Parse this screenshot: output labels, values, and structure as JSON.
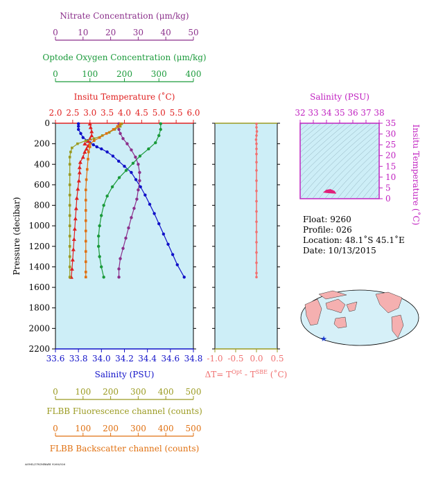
{
  "colors": {
    "nitrate": "#8b2f8b",
    "oxygen": "#1a9a3a",
    "temperature": "#e02020",
    "salinity": "#1010c8",
    "fluorescence": "#9a9a20",
    "backscatter": "#e07010",
    "delta_t": "#f07070",
    "salinity_ts": "#c020c0",
    "ts_fill": "#e0207a",
    "plot_bg": "#cdeef7",
    "black": "#000000"
  },
  "chart_data": [
    {
      "type": "line",
      "name": "profile",
      "ylabel": "Pressure (decibar)",
      "ylim": [
        0,
        2200
      ],
      "y_ticks": [
        "0",
        "200",
        "400",
        "600",
        "800",
        "1000",
        "1200",
        "1400",
        "1600",
        "1800",
        "2000",
        "2200"
      ],
      "axes": {
        "nitrate": {
          "label": "Nitrate Concentration (μm/kg)",
          "range": [
            0,
            50
          ],
          "ticks": [
            "0",
            "10",
            "20",
            "30",
            "40",
            "50"
          ]
        },
        "oxygen": {
          "label": "Optode Oxygen Concentration (μm/kg)",
          "range": [
            0,
            400
          ],
          "ticks": [
            "0",
            "100",
            "200",
            "300",
            "400"
          ]
        },
        "temperature": {
          "label": "Insitu Temperature (˚C)",
          "range": [
            2.0,
            6.0
          ],
          "ticks": [
            "2.0",
            "2.5",
            "3.0",
            "3.5",
            "4.0",
            "4.5",
            "5.0",
            "5.5",
            "6.0"
          ]
        },
        "salinity": {
          "label": "Salinity (PSU)",
          "range": [
            33.6,
            34.8
          ],
          "ticks": [
            "33.6",
            "33.8",
            "34.0",
            "34.2",
            "34.4",
            "34.6",
            "34.8"
          ]
        },
        "fluorescence": {
          "label": "FLBB Fluorescence channel (counts)",
          "range": [
            0,
            500
          ],
          "ticks": [
            "0",
            "100",
            "200",
            "300",
            "400",
            "500"
          ]
        },
        "backscatter": {
          "label": "FLBB Backscatter channel (counts)",
          "range": [
            0,
            500
          ],
          "ticks": [
            "0",
            "100",
            "200",
            "300",
            "400",
            "500"
          ]
        }
      },
      "series": [
        {
          "axis": "salinity",
          "marker": "circle",
          "points": [
            [
              33.8,
              5
            ],
            [
              33.8,
              30
            ],
            [
              33.8,
              60
            ],
            [
              33.82,
              100
            ],
            [
              33.84,
              140
            ],
            [
              33.88,
              170
            ],
            [
              33.9,
              190
            ],
            [
              33.93,
              210
            ],
            [
              33.96,
              230
            ],
            [
              34.0,
              250
            ],
            [
              34.05,
              280
            ],
            [
              34.1,
              320
            ],
            [
              34.15,
              370
            ],
            [
              34.2,
              420
            ],
            [
              34.26,
              480
            ],
            [
              34.3,
              550
            ],
            [
              34.34,
              620
            ],
            [
              34.38,
              700
            ],
            [
              34.42,
              790
            ],
            [
              34.46,
              880
            ],
            [
              34.5,
              980
            ],
            [
              34.54,
              1080
            ],
            [
              34.58,
              1180
            ],
            [
              34.62,
              1280
            ],
            [
              34.66,
              1380
            ],
            [
              34.72,
              1500
            ]
          ]
        },
        {
          "axis": "temperature",
          "marker": "triangle",
          "points": [
            [
              3.0,
              5
            ],
            [
              3.02,
              40
            ],
            [
              3.05,
              80
            ],
            [
              3.05,
              120
            ],
            [
              3.0,
              150
            ],
            [
              2.95,
              175
            ],
            [
              2.85,
              200
            ],
            [
              2.95,
              220
            ],
            [
              2.9,
              250
            ],
            [
              2.85,
              280
            ],
            [
              2.8,
              330
            ],
            [
              2.72,
              380
            ],
            [
              2.7,
              430
            ],
            [
              2.7,
              480
            ],
            [
              2.68,
              560
            ],
            [
              2.65,
              640
            ],
            [
              2.62,
              730
            ],
            [
              2.6,
              830
            ],
            [
              2.58,
              930
            ],
            [
              2.56,
              1030
            ],
            [
              2.54,
              1130
            ],
            [
              2.52,
              1230
            ],
            [
              2.5,
              1330
            ],
            [
              2.48,
              1420
            ],
            [
              2.46,
              1500
            ]
          ]
        },
        {
          "axis": "oxygen",
          "marker": "circle",
          "points": [
            [
              305,
              5
            ],
            [
              305,
              60
            ],
            [
              300,
              120
            ],
            [
              290,
              190
            ],
            [
              270,
              250
            ],
            [
              245,
              320
            ],
            [
              225,
              390
            ],
            [
              205,
              460
            ],
            [
              185,
              530
            ],
            [
              165,
              620
            ],
            [
              150,
              710
            ],
            [
              140,
              800
            ],
            [
              133,
              900
            ],
            [
              128,
              1000
            ],
            [
              125,
              1100
            ],
            [
              125,
              1200
            ],
            [
              128,
              1300
            ],
            [
              133,
              1400
            ],
            [
              140,
              1500
            ]
          ]
        },
        {
          "axis": "nitrate",
          "marker": "circle",
          "points": [
            [
              23,
              5
            ],
            [
              23,
              60
            ],
            [
              23.5,
              100
            ],
            [
              24.5,
              150
            ],
            [
              26,
              200
            ],
            [
              27.5,
              260
            ],
            [
              29,
              330
            ],
            [
              30,
              400
            ],
            [
              30.5,
              480
            ],
            [
              30.5,
              560
            ],
            [
              30,
              650
            ],
            [
              29.5,
              740
            ],
            [
              28.5,
              830
            ],
            [
              27.5,
              920
            ],
            [
              26.5,
              1020
            ],
            [
              25.5,
              1120
            ],
            [
              24.5,
              1220
            ],
            [
              23.5,
              1320
            ],
            [
              23,
              1420
            ],
            [
              23,
              1500
            ]
          ]
        },
        {
          "axis": "fluorescence",
          "marker": "square",
          "points": [
            [
              240,
              5
            ],
            [
              235,
              30
            ],
            [
              215,
              60
            ],
            [
              195,
              90
            ],
            [
              170,
              120
            ],
            [
              140,
              150
            ],
            [
              110,
              170
            ],
            [
              80,
              200
            ],
            [
              60,
              240
            ],
            [
              55,
              280
            ],
            [
              52,
              330
            ],
            [
              52,
              400
            ],
            [
              52,
              500
            ],
            [
              52,
              600
            ],
            [
              52,
              700
            ],
            [
              52,
              800
            ],
            [
              52,
              900
            ],
            [
              52,
              1000
            ],
            [
              52,
              1100
            ],
            [
              52,
              1200
            ],
            [
              52,
              1300
            ],
            [
              52,
              1400
            ],
            [
              52,
              1500
            ]
          ]
        },
        {
          "axis": "backscatter",
          "marker": "square",
          "points": [
            [
              235,
              5
            ],
            [
              225,
              30
            ],
            [
              210,
              60
            ],
            [
              185,
              100
            ],
            [
              160,
              140
            ],
            [
              140,
              170
            ],
            [
              125,
              200
            ],
            [
              125,
              230
            ],
            [
              120,
              280
            ],
            [
              118,
              350
            ],
            [
              115,
              450
            ],
            [
              112,
              550
            ],
            [
              110,
              650
            ],
            [
              110,
              750
            ],
            [
              110,
              850
            ],
            [
              110,
              950
            ],
            [
              110,
              1050
            ],
            [
              110,
              1150
            ],
            [
              110,
              1250
            ],
            [
              110,
              1350
            ],
            [
              110,
              1450
            ],
            [
              110,
              1500
            ]
          ]
        }
      ]
    },
    {
      "type": "line",
      "name": "delta-t",
      "xlabel": "ΔT= T",
      "xlabel_sup1": "Opt",
      "xlabel_mid": " - T",
      "xlabel_sup2": "SBE",
      "xlabel_tail": " (˚C)",
      "xlim": [
        -1.0,
        0.5
      ],
      "ylim": [
        0,
        2200
      ],
      "x_ticks": [
        "-1.0",
        "-0.5",
        "0.0",
        "0.5"
      ],
      "series": [
        {
          "points": [
            [
              0.0,
              5
            ],
            [
              0.0,
              40
            ],
            [
              0.01,
              80
            ],
            [
              0.0,
              120
            ],
            [
              -0.01,
              160
            ],
            [
              0.0,
              200
            ],
            [
              0.0,
              250
            ],
            [
              0.0,
              300
            ],
            [
              0.0,
              380
            ],
            [
              0.0,
              460
            ],
            [
              0.0,
              560
            ],
            [
              0.0,
              660
            ],
            [
              0.0,
              760
            ],
            [
              0.0,
              860
            ],
            [
              0.0,
              960
            ],
            [
              0.0,
              1060
            ],
            [
              0.0,
              1160
            ],
            [
              0.0,
              1260
            ],
            [
              0.0,
              1360
            ],
            [
              0.0,
              1460
            ],
            [
              0.0,
              1500
            ]
          ]
        }
      ]
    },
    {
      "type": "scatter",
      "name": "ts-diagram",
      "xlabel": "Salinity (PSU)",
      "ylabel": "Insitu Temperature (˚C)",
      "xlim": [
        32,
        38
      ],
      "ylim": [
        0,
        35
      ],
      "x_ticks": [
        "32",
        "33",
        "34",
        "35",
        "36",
        "37",
        "38"
      ],
      "y_ticks": [
        "0",
        "5",
        "10",
        "15",
        "20",
        "25",
        "30",
        "35"
      ],
      "series": [
        {
          "points": [
            [
              33.8,
              3.0
            ],
            [
              34.0,
              4.0
            ],
            [
              34.3,
              4.3
            ],
            [
              34.6,
              3.5
            ],
            [
              34.7,
              2.5
            ],
            [
              34.4,
              2.6
            ],
            [
              34.0,
              2.8
            ]
          ]
        }
      ]
    }
  ],
  "info": {
    "float": "Float:  9260",
    "profile": "Profile:  026",
    "location": "Location:  48.1˚S  45.1˚E",
    "date": "Date:  10/13/2015"
  },
  "footer": "AOML/UW/MBARI 9260/026"
}
